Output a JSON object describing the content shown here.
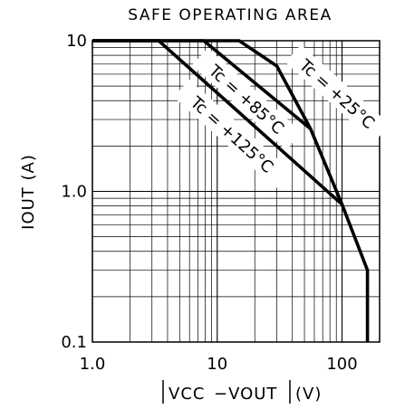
{
  "chart_data": {
    "type": "line",
    "title": "SAFE OPERATING AREA",
    "xlabel_left": "VCC",
    "xlabel_mid": "−VOUT",
    "xlabel_unit": "(V)",
    "ylabel": "IOUT (A)",
    "xscale": "log",
    "yscale": "log",
    "xlim": [
      1.0,
      200
    ],
    "ylim": [
      0.1,
      10
    ],
    "x_ticks": [
      {
        "value": 1,
        "label": "1.0"
      },
      {
        "value": 10,
        "label": "10"
      },
      {
        "value": 100,
        "label": "100"
      }
    ],
    "y_ticks": [
      {
        "value": 0.1,
        "label": "0.1"
      },
      {
        "value": 1,
        "label": "1.0"
      },
      {
        "value": 10,
        "label": "10"
      }
    ],
    "grid": true,
    "series": [
      {
        "name": "Tc = +25°C",
        "points": [
          [
            1.0,
            10
          ],
          [
            15,
            10
          ],
          [
            30,
            6.8
          ],
          [
            56,
            2.6
          ],
          [
            100,
            0.82
          ],
          [
            160,
            0.3
          ],
          [
            160,
            0.1
          ]
        ]
      },
      {
        "name": "Tc = +85°C",
        "points": [
          [
            1.0,
            10
          ],
          [
            7.8,
            10
          ],
          [
            56,
            2.6
          ]
        ]
      },
      {
        "name": "Tc = +125°C",
        "points": [
          [
            1.0,
            10
          ],
          [
            3.4,
            10
          ],
          [
            100,
            0.82
          ]
        ]
      }
    ],
    "labels": {
      "tc25": "Tc = +25°C",
      "tc85": "Tc = +85°C",
      "tc125": "Tc = +125°C"
    }
  }
}
